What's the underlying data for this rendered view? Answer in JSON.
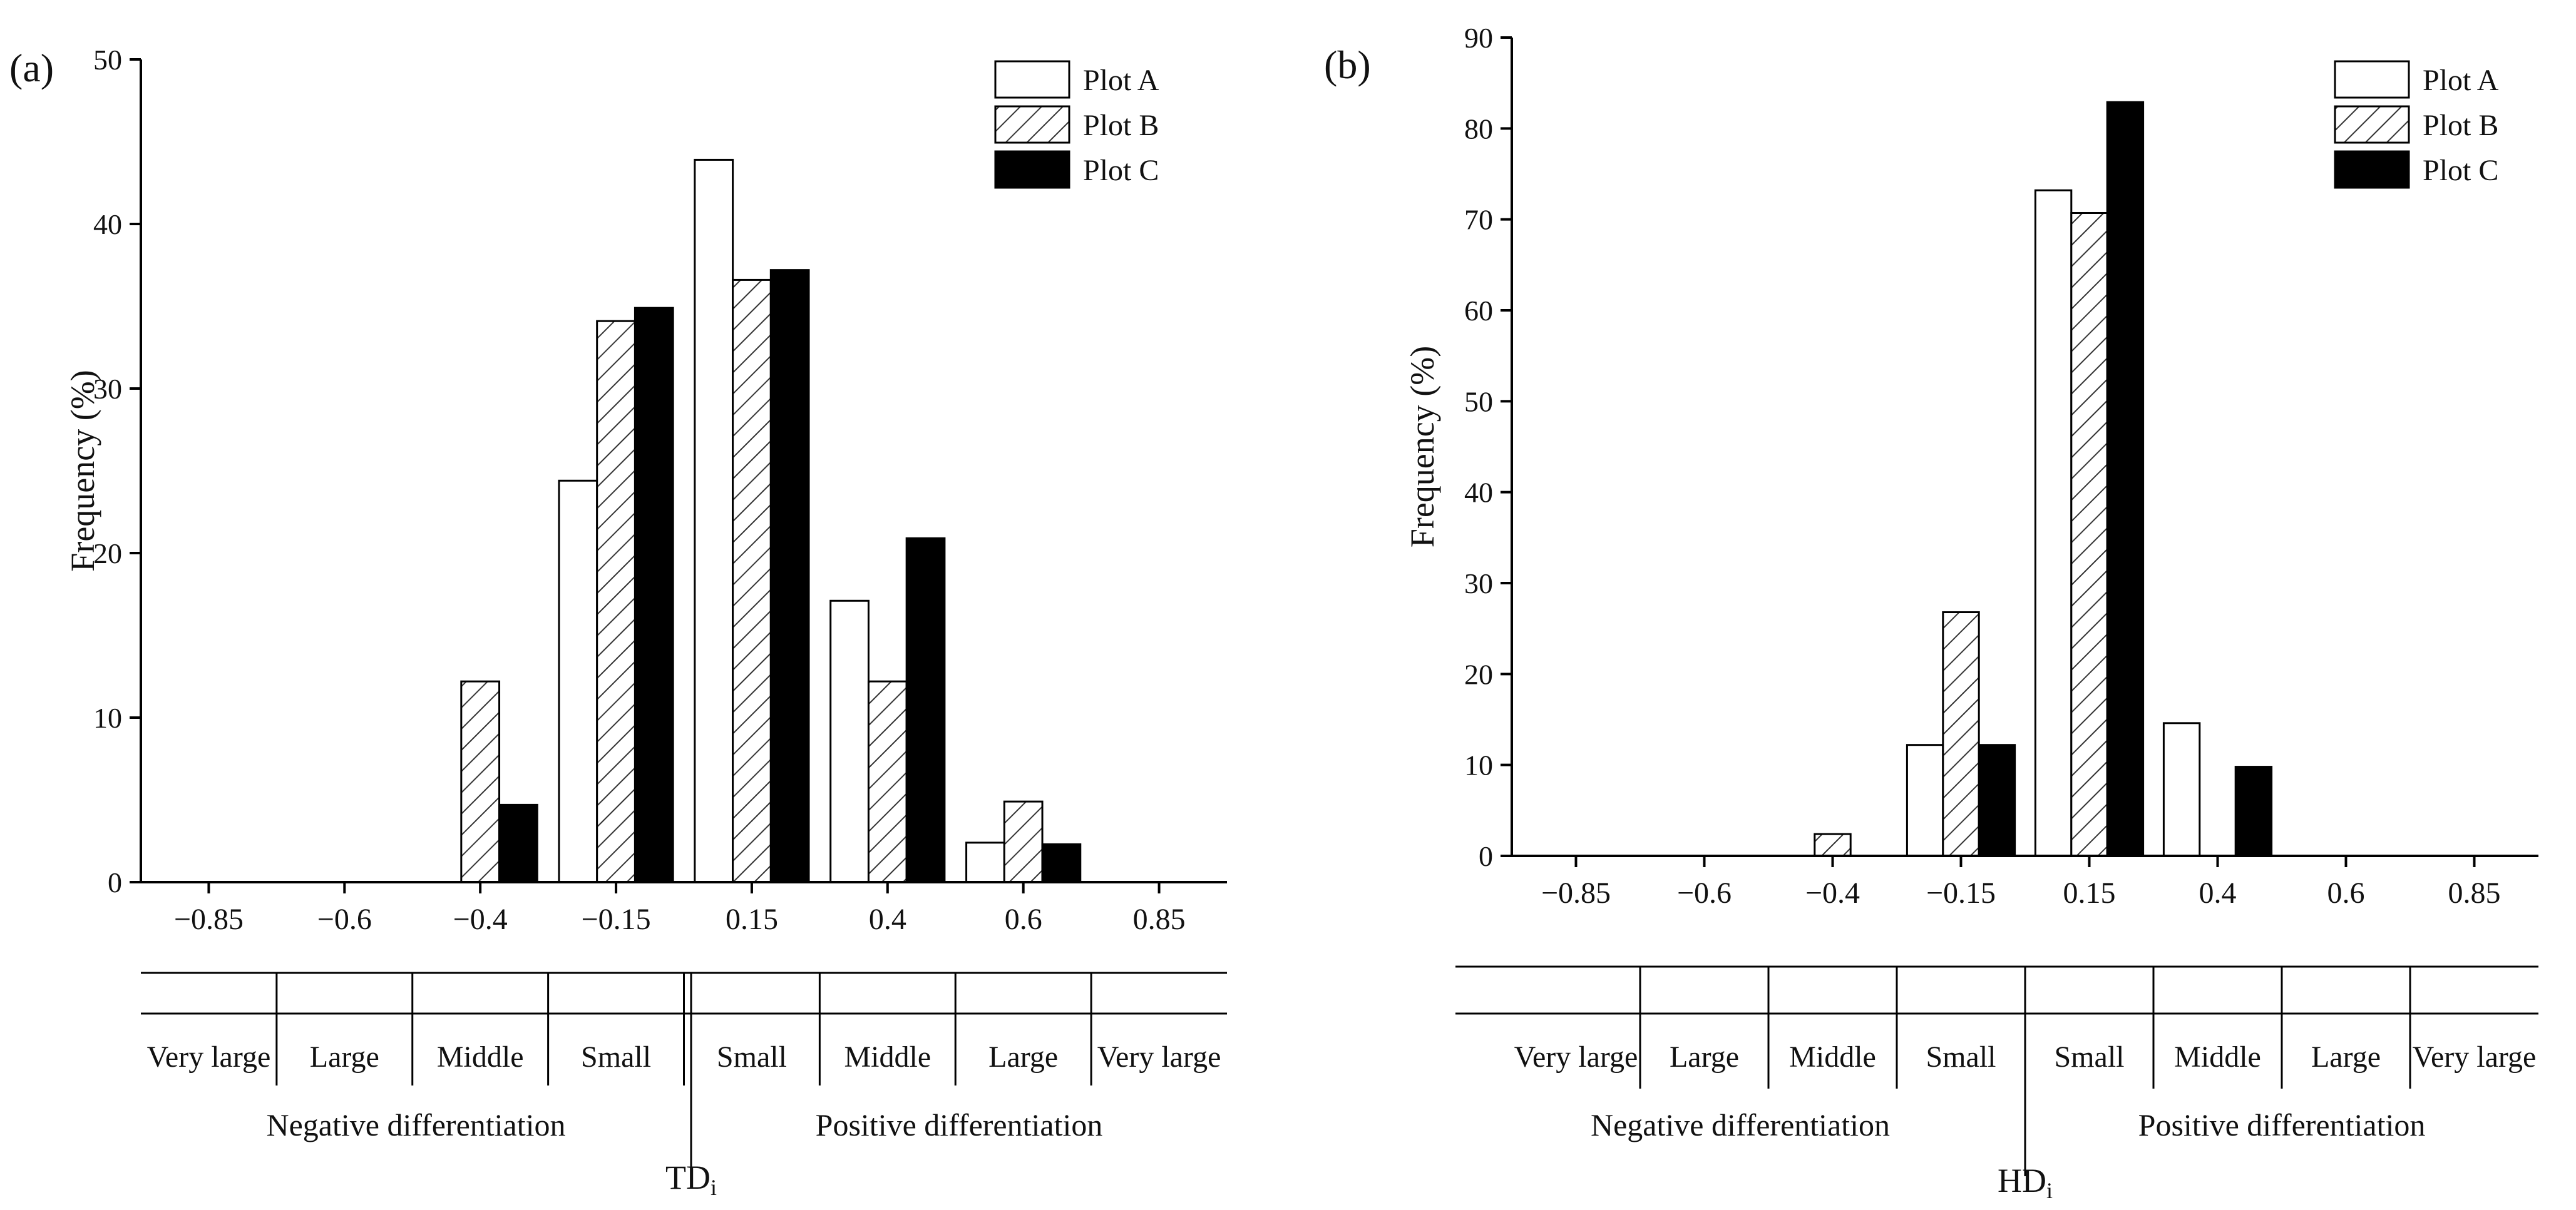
{
  "chart_data": [
    {
      "type": "bar",
      "panel_label": "(a)",
      "categories": [
        "-0.85",
        "-0.6",
        "-0.4",
        "-0.15",
        "0.15",
        "0.4",
        "0.6",
        "0.85"
      ],
      "series": [
        {
          "name": "Plot A",
          "values": [
            0,
            0,
            0,
            24.4,
            43.9,
            17.1,
            2.4,
            0
          ]
        },
        {
          "name": "Plot B",
          "values": [
            0,
            0,
            12.2,
            34.1,
            36.6,
            12.2,
            4.9,
            0
          ]
        },
        {
          "name": "Plot C",
          "values": [
            0,
            0,
            4.7,
            34.9,
            37.2,
            20.9,
            2.3,
            0
          ]
        }
      ],
      "ylabel": "Frequency (%)",
      "ylim": [
        0,
        50
      ],
      "yticks": [
        "0",
        "10",
        "20",
        "30",
        "40",
        "50"
      ],
      "xlabel_main": "TD",
      "xlabel_sub": "i",
      "classes": [
        "Very large",
        "Large",
        "Middle",
        "Small",
        "Small",
        "Middle",
        "Large",
        "Very large"
      ],
      "groups": [
        "Negative differentiation",
        "Positive differentiation"
      ],
      "legend_position": "top-right"
    },
    {
      "type": "bar",
      "panel_label": "(b)",
      "categories": [
        "-0.85",
        "-0.6",
        "-0.4",
        "-0.15",
        "0.15",
        "0.4",
        "0.6",
        "0.85"
      ],
      "series": [
        {
          "name": "Plot A",
          "values": [
            0,
            0,
            0,
            12.2,
            73.2,
            14.6,
            0,
            0
          ]
        },
        {
          "name": "Plot B",
          "values": [
            0,
            0,
            2.4,
            26.8,
            70.7,
            0,
            0,
            0
          ]
        },
        {
          "name": "Plot C",
          "values": [
            0,
            0,
            0,
            12.2,
            82.9,
            9.8,
            0,
            0
          ]
        }
      ],
      "ylabel": "Frequency (%)",
      "ylim": [
        0,
        90
      ],
      "yticks": [
        "0",
        "10",
        "20",
        "30",
        "40",
        "50",
        "60",
        "70",
        "80",
        "90"
      ],
      "xlabel_main": "HD",
      "xlabel_sub": "i",
      "classes": [
        "Very large",
        "Large",
        "Middle",
        "Small",
        "Small",
        "Middle",
        "Large",
        "Very large"
      ],
      "groups": [
        "Negative differentiation",
        "Positive differentiation"
      ],
      "legend_position": "top-right"
    }
  ]
}
